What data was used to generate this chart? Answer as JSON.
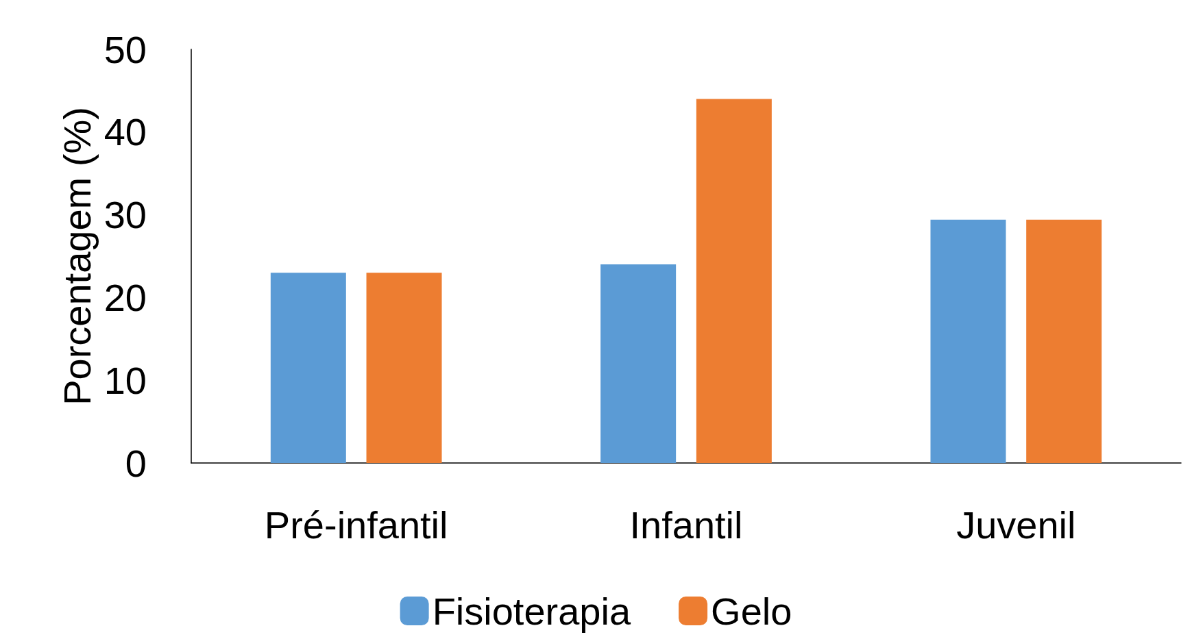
{
  "chart_data": {
    "type": "bar",
    "ylabel": "Porcentagem (%)",
    "categories": [
      "Pré-infantil",
      "Infantil",
      "Juvenil"
    ],
    "series": [
      {
        "name": "Fisioterapia",
        "color": "#5b9bd5",
        "values": [
          23,
          24,
          29.4
        ]
      },
      {
        "name": "Gelo",
        "color": "#ed7d31",
        "values": [
          23,
          44,
          29.4
        ]
      }
    ],
    "ylim": [
      0,
      50
    ],
    "yticks": [
      0,
      10,
      20,
      30,
      40,
      50
    ],
    "grid": false,
    "legend": "bottom"
  }
}
